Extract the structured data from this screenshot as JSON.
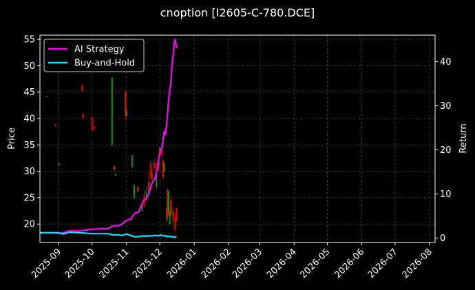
{
  "chart_data": {
    "type": "line",
    "title": "cnoption [I2605-C-780.DCE]",
    "ylabel_left": "Price",
    "ylabel_right": "Return",
    "grid": true,
    "legend_placement": "top-left",
    "colors": {
      "background": "#000000",
      "ai_strategy": "#ff00ff",
      "buy_and_hold": "#00e5ff",
      "candle_up": "#00a000",
      "candle_down": "#ff0000",
      "grid": "#555555"
    },
    "xlim": [
      "2025-08-15",
      "2026-08-06"
    ],
    "x_ticks": [
      "2025-09",
      "2025-10",
      "2025-11",
      "2025-12",
      "2026-01",
      "2026-02",
      "2026-03",
      "2026-04",
      "2026-05",
      "2026-06",
      "2026-07",
      "2026-08"
    ],
    "ylim_left": [
      16.5,
      55.8
    ],
    "y_ticks_left": [
      20,
      25,
      30,
      35,
      40,
      45,
      50,
      55
    ],
    "ylim_right": [
      -1,
      46
    ],
    "y_ticks_right": [
      0,
      10,
      20,
      30,
      40
    ],
    "series": [
      {
        "name": "AI Strategy",
        "axis": "right",
        "x": [
          "2025-08-15",
          "2025-08-25",
          "2025-09-01",
          "2025-09-05",
          "2025-09-10",
          "2025-09-20",
          "2025-10-01",
          "2025-10-10",
          "2025-10-15",
          "2025-10-20",
          "2025-10-25",
          "2025-10-28",
          "2025-11-01",
          "2025-11-05",
          "2025-11-08",
          "2025-11-12",
          "2025-11-16",
          "2025-11-19",
          "2025-11-21",
          "2025-11-24",
          "2025-11-27",
          "2025-11-30",
          "2025-12-02",
          "2025-12-03",
          "2025-12-05",
          "2025-12-06",
          "2025-12-07",
          "2025-12-08",
          "2025-12-09",
          "2025-12-10",
          "2025-12-11",
          "2025-12-12",
          "2025-12-13",
          "2025-12-14",
          "2025-12-15",
          "2025-12-16"
        ],
        "values": [
          1.2,
          1.2,
          1.1,
          1.2,
          1.6,
          1.6,
          2.0,
          2.1,
          2.1,
          2.8,
          2.8,
          3.2,
          4.0,
          4.3,
          5.6,
          5.9,
          8.4,
          9.0,
          10.0,
          12.5,
          13.6,
          18.0,
          20.0,
          20.6,
          24.2,
          23.5,
          25.4,
          28.3,
          31.5,
          33.5,
          35.5,
          39.5,
          41.5,
          44.6,
          45.0,
          43.0
        ]
      },
      {
        "name": "Buy-and-Hold",
        "axis": "right",
        "x": [
          "2025-08-15",
          "2025-08-25",
          "2025-09-01",
          "2025-09-05",
          "2025-09-10",
          "2025-09-20",
          "2025-10-01",
          "2025-10-10",
          "2025-10-15",
          "2025-10-20",
          "2025-10-25",
          "2025-10-28",
          "2025-11-01",
          "2025-11-05",
          "2025-11-08",
          "2025-11-12",
          "2025-11-16",
          "2025-11-19",
          "2025-11-21",
          "2025-11-24",
          "2025-11-27",
          "2025-11-30",
          "2025-12-02",
          "2025-12-03",
          "2025-12-05",
          "2025-12-06",
          "2025-12-07",
          "2025-12-08",
          "2025-12-09",
          "2025-12-10",
          "2025-12-11",
          "2025-12-12",
          "2025-12-13",
          "2025-12-14",
          "2025-12-15",
          "2025-12-16"
        ],
        "values": [
          1.2,
          1.2,
          1.2,
          0.9,
          1.3,
          1.2,
          1.0,
          1.0,
          1.0,
          0.7,
          0.7,
          0.6,
          0.9,
          0.6,
          0.3,
          0.3,
          0.5,
          0.4,
          0.5,
          0.5,
          0.6,
          0.5,
          0.7,
          0.5,
          0.6,
          0.4,
          0.5,
          0.3,
          0.4,
          0.3,
          0.4,
          0.3,
          0.2,
          0.2,
          0.3,
          0.2
        ]
      }
    ],
    "candles": [
      {
        "date": "2025-08-21",
        "open": 44.3,
        "close": 44.1,
        "high": 44.3,
        "low": 44.0
      },
      {
        "date": "2025-08-29",
        "open": 38.9,
        "close": 38.6,
        "high": 38.9,
        "low": 38.5
      },
      {
        "date": "2025-09-01",
        "open": 31.0,
        "close": 31.6,
        "high": 31.7,
        "low": 31.0
      },
      {
        "date": "2025-09-22",
        "open": 46.3,
        "close": 45.2,
        "high": 46.3,
        "low": 44.9
      },
      {
        "date": "2025-09-23",
        "open": 40.8,
        "close": 40.0,
        "high": 40.9,
        "low": 39.9
      },
      {
        "date": "2025-10-01",
        "open": 40.2,
        "close": 37.7,
        "high": 40.3,
        "low": 37.5
      },
      {
        "date": "2025-10-03",
        "open": 38.5,
        "close": 38.1,
        "high": 38.5,
        "low": 37.9
      },
      {
        "date": "2025-10-19",
        "open": 35.0,
        "close": 47.8,
        "high": 47.8,
        "low": 34.8
      },
      {
        "date": "2025-10-21",
        "open": 31.0,
        "close": 30.3,
        "high": 31.0,
        "low": 30.2
      },
      {
        "date": "2025-10-22",
        "open": 29.2,
        "close": 29.5,
        "high": 29.6,
        "low": 29.1
      },
      {
        "date": "2025-10-31",
        "open": 45.2,
        "close": 40.5,
        "high": 45.2,
        "low": 39.6
      },
      {
        "date": "2025-11-01",
        "open": 40.5,
        "close": 41.5,
        "high": 42.0,
        "low": 40.2
      },
      {
        "date": "2025-11-06",
        "open": 30.8,
        "close": 33.0,
        "high": 33.0,
        "low": 30.5
      },
      {
        "date": "2025-11-08",
        "open": 25.0,
        "close": 27.4,
        "high": 27.5,
        "low": 24.8
      },
      {
        "date": "2025-11-11",
        "open": 27.0,
        "close": 26.2,
        "high": 27.2,
        "low": 26.1
      },
      {
        "date": "2025-11-15",
        "open": 22.5,
        "close": 23.5,
        "high": 23.6,
        "low": 22.3
      },
      {
        "date": "2025-11-17",
        "open": 25.5,
        "close": 23.3,
        "high": 26.5,
        "low": 23.1
      },
      {
        "date": "2025-11-19",
        "open": 24.5,
        "close": 26.0,
        "high": 27.2,
        "low": 24.3
      },
      {
        "date": "2025-11-21",
        "open": 28.0,
        "close": 26.0,
        "high": 30.0,
        "low": 25.8
      },
      {
        "date": "2025-11-23",
        "open": 31.5,
        "close": 29.0,
        "high": 32.0,
        "low": 28.5
      },
      {
        "date": "2025-11-24",
        "open": 29.5,
        "close": 28.5,
        "high": 30.2,
        "low": 28.2
      },
      {
        "date": "2025-11-26",
        "open": 31.6,
        "close": 30.6,
        "high": 32.3,
        "low": 30.2
      },
      {
        "date": "2025-11-28",
        "open": 27.0,
        "close": 29.5,
        "high": 30.3,
        "low": 26.7
      },
      {
        "date": "2025-11-30",
        "open": 33.0,
        "close": 31.0,
        "high": 33.5,
        "low": 30.0
      },
      {
        "date": "2025-12-01",
        "open": 33.2,
        "close": 34.5,
        "high": 34.5,
        "low": 32.7
      },
      {
        "date": "2025-12-03",
        "open": 34.0,
        "close": 33.0,
        "high": 34.2,
        "low": 31.6
      },
      {
        "date": "2025-12-04",
        "open": 32.0,
        "close": 28.8,
        "high": 32.0,
        "low": 28.5
      },
      {
        "date": "2025-12-05",
        "open": 30.0,
        "close": 31.5,
        "high": 31.6,
        "low": 29.8
      },
      {
        "date": "2025-12-07",
        "open": 23.0,
        "close": 21.0,
        "high": 23.2,
        "low": 20.3
      },
      {
        "date": "2025-12-08",
        "open": 26.5,
        "close": 21.5,
        "high": 26.6,
        "low": 20.5
      },
      {
        "date": "2025-12-09",
        "open": 22.5,
        "close": 26.2,
        "high": 26.4,
        "low": 21.7
      },
      {
        "date": "2025-12-10",
        "open": 20.0,
        "close": 22.5,
        "high": 22.6,
        "low": 19.8
      },
      {
        "date": "2025-12-11",
        "open": 24.5,
        "close": 21.8,
        "high": 25.2,
        "low": 21.5
      },
      {
        "date": "2025-12-13",
        "open": 22.5,
        "close": 20.5,
        "high": 23.1,
        "low": 18.9
      },
      {
        "date": "2025-12-15",
        "open": 21.0,
        "close": 19.0,
        "high": 21.8,
        "low": 18.6
      },
      {
        "date": "2025-12-16",
        "open": 23.0,
        "close": 20.7,
        "high": 23.1,
        "low": 20.4
      }
    ]
  }
}
